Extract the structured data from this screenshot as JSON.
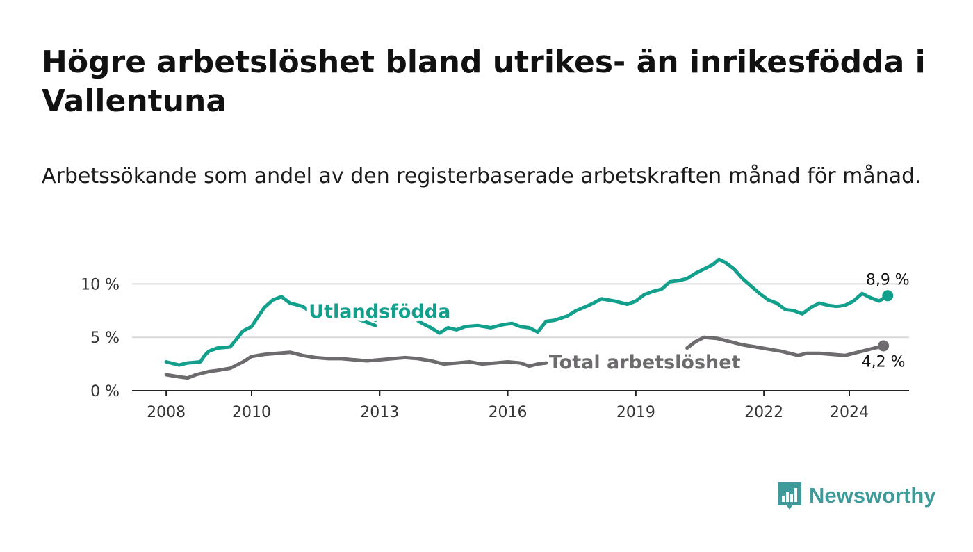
{
  "title": "Högre arbetslöshet bland utrikes- än inrikesfödda i Vallentuna",
  "subtitle": "Arbetssökande som andel av den registerbaserade arbetskraften månad för månad.",
  "brand": {
    "name": "Newsworthy",
    "icon": "bar-chart-speech-bubble-icon",
    "color": "#3f9b9a"
  },
  "chart_data": {
    "type": "line",
    "title": "",
    "xlabel": "",
    "ylabel": "",
    "ylim": [
      0,
      12.5
    ],
    "xlim": [
      2007.2,
      2025.4
    ],
    "yticks": [
      {
        "value": 0,
        "label": "0 %"
      },
      {
        "value": 5,
        "label": "5 %"
      },
      {
        "value": 10,
        "label": "10 %"
      }
    ],
    "xticks": [
      {
        "value": 2008,
        "label": "2008"
      },
      {
        "value": 2010,
        "label": "2010"
      },
      {
        "value": 2013,
        "label": "2013"
      },
      {
        "value": 2016,
        "label": "2016"
      },
      {
        "value": 2019,
        "label": "2019"
      },
      {
        "value": 2022,
        "label": "2022"
      },
      {
        "value": 2024,
        "label": "2024"
      }
    ],
    "grid": "horizontal",
    "series": [
      {
        "name": "Utlandsfödda",
        "color": "#12a08c",
        "end_label": "8,9 %",
        "points": [
          [
            2008.0,
            2.7
          ],
          [
            2008.3,
            2.4
          ],
          [
            2008.5,
            2.6
          ],
          [
            2008.8,
            2.7
          ],
          [
            2008.9,
            3.3
          ],
          [
            2009.0,
            3.7
          ],
          [
            2009.2,
            4.0
          ],
          [
            2009.5,
            4.1
          ],
          [
            2009.6,
            4.6
          ],
          [
            2009.8,
            5.6
          ],
          [
            2010.0,
            6.0
          ],
          [
            2010.1,
            6.6
          ],
          [
            2010.3,
            7.8
          ],
          [
            2010.5,
            8.5
          ],
          [
            2010.7,
            8.8
          ],
          [
            2010.9,
            8.2
          ],
          [
            2011.2,
            7.9
          ],
          [
            2011.4,
            7.3
          ],
          [
            2011.6,
            7.5
          ],
          [
            2011.8,
            7.2
          ],
          [
            2012.0,
            7.4
          ],
          [
            2012.3,
            7.0
          ],
          [
            2012.5,
            6.7
          ],
          [
            2012.7,
            6.4
          ],
          [
            2012.9,
            6.1
          ]
        ],
        "points_2": [
          [
            2012.9,
            6.6
          ],
          [
            2013.0,
            6.8
          ]
        ],
        "points_3": [
          [
            2013.8,
            6.8
          ],
          [
            2014.0,
            6.3
          ],
          [
            2014.2,
            5.9
          ],
          [
            2014.4,
            5.4
          ],
          [
            2014.6,
            5.9
          ],
          [
            2014.8,
            5.7
          ],
          [
            2015.0,
            6.0
          ],
          [
            2015.3,
            6.1
          ],
          [
            2015.6,
            5.9
          ],
          [
            2015.9,
            6.2
          ],
          [
            2016.1,
            6.3
          ],
          [
            2016.3,
            6.0
          ],
          [
            2016.5,
            5.9
          ],
          [
            2016.7,
            5.5
          ],
          [
            2016.9,
            6.5
          ],
          [
            2017.1,
            6.6
          ],
          [
            2017.4,
            7.0
          ],
          [
            2017.6,
            7.5
          ],
          [
            2017.9,
            8.0
          ],
          [
            2018.2,
            8.6
          ],
          [
            2018.5,
            8.4
          ],
          [
            2018.8,
            8.1
          ],
          [
            2019.0,
            8.4
          ],
          [
            2019.2,
            9.0
          ],
          [
            2019.4,
            9.3
          ],
          [
            2019.6,
            9.5
          ],
          [
            2019.8,
            10.2
          ],
          [
            2020.0,
            10.3
          ],
          [
            2020.2,
            10.5
          ],
          [
            2020.4,
            11.0
          ],
          [
            2020.6,
            11.4
          ],
          [
            2020.8,
            11.8
          ],
          [
            2020.95,
            12.3
          ],
          [
            2021.1,
            12.0
          ],
          [
            2021.3,
            11.4
          ],
          [
            2021.5,
            10.5
          ],
          [
            2021.7,
            9.8
          ],
          [
            2021.9,
            9.1
          ],
          [
            2022.1,
            8.5
          ],
          [
            2022.3,
            8.2
          ],
          [
            2022.5,
            7.6
          ],
          [
            2022.7,
            7.5
          ],
          [
            2022.9,
            7.2
          ],
          [
            2023.1,
            7.8
          ],
          [
            2023.3,
            8.2
          ],
          [
            2023.5,
            8.0
          ],
          [
            2023.7,
            7.9
          ],
          [
            2023.9,
            8.0
          ],
          [
            2024.1,
            8.4
          ],
          [
            2024.3,
            9.1
          ],
          [
            2024.5,
            8.7
          ],
          [
            2024.7,
            8.4
          ],
          [
            2024.9,
            8.9
          ]
        ]
      },
      {
        "name": "Total arbetslöshet",
        "color": "#6d6b6d",
        "end_label": "4,2 %",
        "points": [
          [
            2008.0,
            1.5
          ],
          [
            2008.3,
            1.3
          ],
          [
            2008.5,
            1.2
          ],
          [
            2008.7,
            1.5
          ],
          [
            2009.0,
            1.8
          ],
          [
            2009.2,
            1.9
          ],
          [
            2009.5,
            2.1
          ],
          [
            2009.8,
            2.7
          ],
          [
            2010.0,
            3.2
          ],
          [
            2010.3,
            3.4
          ],
          [
            2010.6,
            3.5
          ],
          [
            2010.9,
            3.6
          ],
          [
            2011.2,
            3.3
          ],
          [
            2011.5,
            3.1
          ],
          [
            2011.8,
            3.0
          ],
          [
            2012.1,
            3.0
          ],
          [
            2012.4,
            2.9
          ],
          [
            2012.7,
            2.8
          ],
          [
            2013.0,
            2.9
          ],
          [
            2013.3,
            3.0
          ],
          [
            2013.6,
            3.1
          ],
          [
            2013.9,
            3.0
          ],
          [
            2014.2,
            2.8
          ],
          [
            2014.5,
            2.5
          ],
          [
            2014.8,
            2.6
          ],
          [
            2015.1,
            2.7
          ],
          [
            2015.4,
            2.5
          ],
          [
            2015.7,
            2.6
          ],
          [
            2016.0,
            2.7
          ],
          [
            2016.3,
            2.6
          ],
          [
            2016.5,
            2.3
          ],
          [
            2016.7,
            2.5
          ],
          [
            2016.9,
            2.6
          ]
        ],
        "points_2": [
          [
            2020.2,
            4.0
          ],
          [
            2020.4,
            4.6
          ],
          [
            2020.6,
            5.0
          ],
          [
            2020.9,
            4.9
          ],
          [
            2021.2,
            4.6
          ],
          [
            2021.5,
            4.3
          ],
          [
            2021.8,
            4.1
          ],
          [
            2022.1,
            3.9
          ],
          [
            2022.4,
            3.7
          ],
          [
            2022.6,
            3.5
          ],
          [
            2022.8,
            3.3
          ],
          [
            2023.0,
            3.5
          ],
          [
            2023.3,
            3.5
          ],
          [
            2023.6,
            3.4
          ],
          [
            2023.9,
            3.3
          ],
          [
            2024.2,
            3.6
          ],
          [
            2024.5,
            3.9
          ],
          [
            2024.8,
            4.2
          ]
        ]
      }
    ]
  }
}
